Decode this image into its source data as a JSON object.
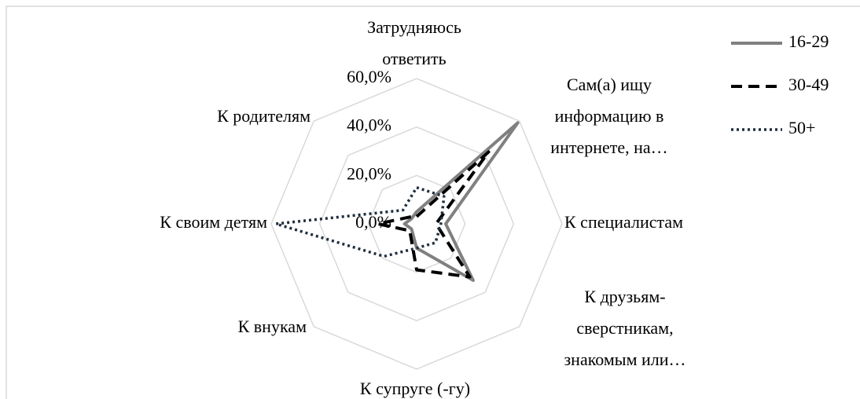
{
  "chart_data": {
    "type": "radar",
    "categories": [
      "Затрудняюсь\nответить",
      "Сам(а) ищу\nинформацию в\nинтернете, на…",
      "К специалистам",
      "К друзьям-\nсверстникам,\nзнакомым или…",
      "К супруге (-гу)",
      "К внукам",
      "К своим детям",
      "К родителям"
    ],
    "series": [
      {
        "name": "16-29",
        "color": "#808080",
        "dash": "solid",
        "values": [
          5,
          59,
          12,
          33,
          10,
          3,
          5,
          3
        ]
      },
      {
        "name": "30-49",
        "color": "#000000",
        "dash": "dashed",
        "values": [
          3,
          42,
          8,
          31,
          19,
          4,
          16,
          4
        ]
      },
      {
        "name": "50+",
        "color": "#1f2d3d",
        "dash": "dotted",
        "values": [
          15,
          16,
          10,
          11,
          10,
          19,
          58,
          8
        ]
      }
    ],
    "rlim": [
      0,
      60
    ],
    "rticks": [
      {
        "value": 0,
        "label": "0,0%"
      },
      {
        "value": 20,
        "label": "20,0%"
      },
      {
        "value": 40,
        "label": "40,0%"
      },
      {
        "value": 60,
        "label": "60,0%"
      }
    ],
    "grid": true,
    "legend": "upper right"
  }
}
